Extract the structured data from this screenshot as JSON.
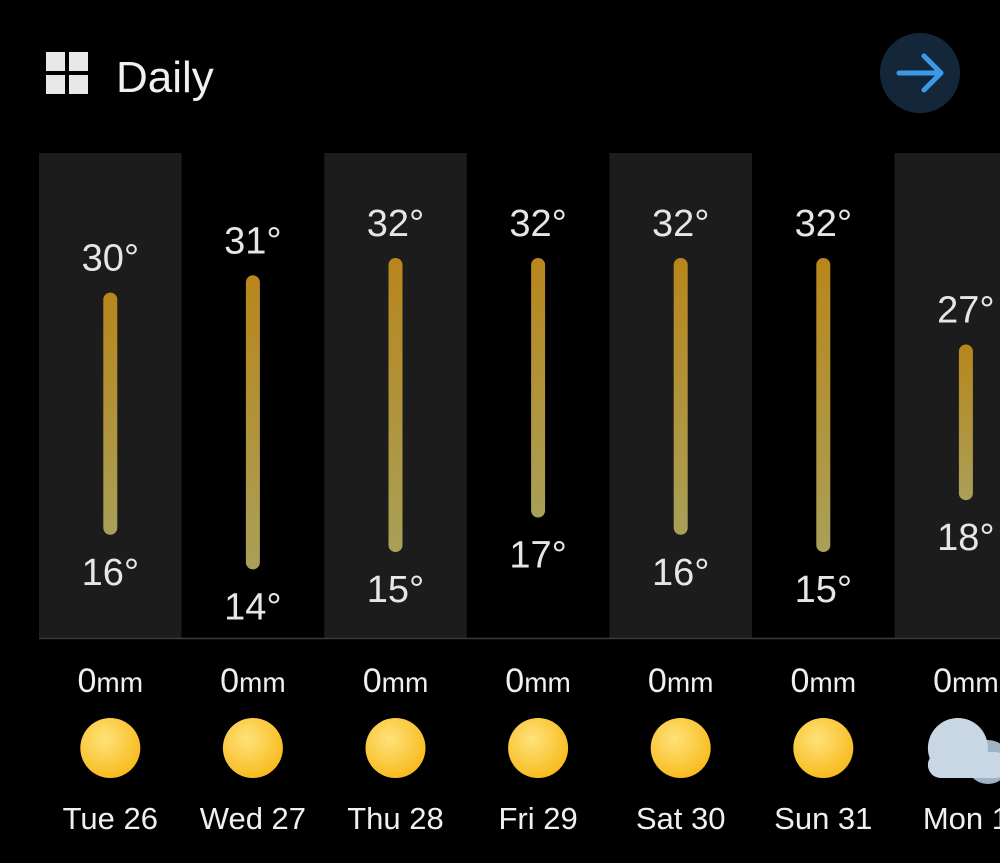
{
  "header": {
    "title": "Daily"
  },
  "days": [
    {
      "label": "Tue 26",
      "high": 30,
      "high_label": "30°",
      "low": 16,
      "low_label": "16°",
      "rain": 0,
      "rain_unit": "mm",
      "icon": "sunny"
    },
    {
      "label": "Wed 27",
      "high": 31,
      "high_label": "31°",
      "low": 14,
      "low_label": "14°",
      "rain": 0,
      "rain_unit": "mm",
      "icon": "sunny"
    },
    {
      "label": "Thu 28",
      "high": 32,
      "high_label": "32°",
      "low": 15,
      "low_label": "15°",
      "rain": 0,
      "rain_unit": "mm",
      "icon": "sunny"
    },
    {
      "label": "Fri 29",
      "high": 32,
      "high_label": "32°",
      "low": 17,
      "low_label": "17°",
      "rain": 0,
      "rain_unit": "mm",
      "icon": "sunny"
    },
    {
      "label": "Sat 30",
      "high": 32,
      "high_label": "32°",
      "low": 16,
      "low_label": "16°",
      "rain": 0,
      "rain_unit": "mm",
      "icon": "sunny"
    },
    {
      "label": "Sun 31",
      "high": 32,
      "high_label": "32°",
      "low": 15,
      "low_label": "15°",
      "rain": 0,
      "rain_unit": "mm",
      "icon": "sunny"
    },
    {
      "label": "Mon 1",
      "high": 27,
      "high_label": "27°",
      "low": 18,
      "low_label": "18°",
      "rain": 0,
      "rain_unit": "mm",
      "icon": "cloudy"
    }
  ]
}
